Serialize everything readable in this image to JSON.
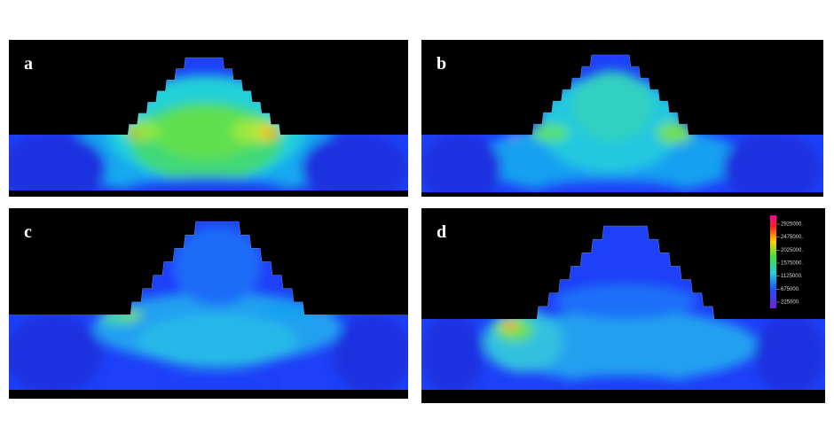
{
  "panels": [
    {
      "label": "a"
    },
    {
      "label": "b"
    },
    {
      "label": "c"
    },
    {
      "label": "d"
    }
  ],
  "legend": {
    "labels": [
      "2925000.",
      "2475000.",
      "2025000.",
      "1575000.",
      "1125000.",
      "675000.",
      "225000."
    ]
  }
}
